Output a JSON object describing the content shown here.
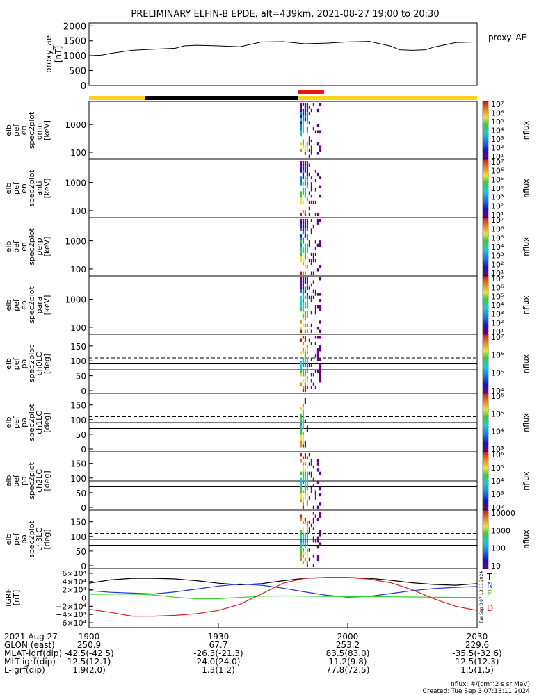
{
  "title": "PRELIMINARY ELFIN-B EPDE, alt=439km, 2021-08-27 19:00 to 20:30",
  "colors": {
    "sunlight_bar": "#ffd21e",
    "shadow_bar": "#000000",
    "science_bar": "#ee1111",
    "T": "#000000",
    "N": "#1f35d8",
    "E": "#2fd12f",
    "D": "#e01b1b"
  },
  "chart_data": [
    {
      "type": "line",
      "title": "proxy_AE",
      "legend": "proxy_AE",
      "ylabel": [
        "proxy_ae",
        "[nT]"
      ],
      "yticks": [
        "2000",
        "1500",
        "1000",
        "500",
        "0"
      ],
      "ylim": [
        0,
        2100
      ],
      "x_minutes": [
        0,
        3,
        5,
        10,
        15,
        20,
        22,
        25,
        30,
        35,
        40,
        45,
        50,
        55,
        60,
        65,
        70,
        72,
        75,
        78,
        80,
        85,
        90
      ],
      "values": [
        1000,
        1020,
        1080,
        1180,
        1220,
        1250,
        1330,
        1350,
        1330,
        1300,
        1460,
        1470,
        1400,
        1420,
        1460,
        1480,
        1320,
        1200,
        1180,
        1200,
        1290,
        1440,
        1460
      ]
    },
    {
      "type": "orbit_bar",
      "segments": [
        {
          "label": "sunlight",
          "from": 0,
          "to": 13
        },
        {
          "label": "shadow",
          "from": 13,
          "to": 48.5
        },
        {
          "label": "sunlight",
          "from": 48.5,
          "to": 90
        }
      ],
      "science_zone": {
        "from": 48.5,
        "to": 54.5
      }
    },
    {
      "type": "heatmap",
      "name": "omni",
      "ylabel": [
        "elb",
        "pef",
        "en",
        "spec2plot",
        "omni",
        "[keV]"
      ],
      "yticks": [
        "1000",
        "100"
      ],
      "yscale": "log",
      "cbar_ticks": [
        "10⁷",
        "10⁶",
        "10⁵",
        "10⁴",
        "10³",
        "10²",
        "10¹"
      ],
      "cbar_label": "nflux",
      "active": [
        49,
        54
      ]
    },
    {
      "type": "heatmap",
      "name": "anti",
      "ylabel": [
        "elb",
        "pef",
        "en",
        "spec2plot",
        "anti",
        "[keV]"
      ],
      "yticks": [
        "1000",
        "100"
      ],
      "yscale": "log",
      "cbar_ticks": [
        "10⁷",
        "10⁶",
        "10⁵",
        "10⁴",
        "10³",
        "10²",
        "10¹"
      ],
      "cbar_label": "nflux",
      "active": [
        49,
        54
      ]
    },
    {
      "type": "heatmap",
      "name": "perp",
      "ylabel": [
        "elb",
        "pef",
        "en",
        "spec2plot",
        "perp",
        "[keV]"
      ],
      "yticks": [
        "1000",
        "100"
      ],
      "yscale": "log",
      "cbar_ticks": [
        "10⁷",
        "10⁶",
        "10⁵",
        "10⁴",
        "10³",
        "10²",
        "10¹"
      ],
      "cbar_label": "nflux",
      "active": [
        49,
        54
      ]
    },
    {
      "type": "heatmap",
      "name": "para",
      "ylabel": [
        "elb",
        "pef",
        "en",
        "spec2plot",
        "para",
        "[keV]"
      ],
      "yticks": [
        "1000",
        "100"
      ],
      "yscale": "log",
      "cbar_ticks": [
        "10⁷",
        "10⁶",
        "10⁵",
        "10⁴",
        "10³",
        "10²",
        "10¹"
      ],
      "cbar_label": "nflux",
      "active": [
        49,
        54
      ]
    },
    {
      "type": "heatmap",
      "name": "ch0LC",
      "ylabel": [
        "elb",
        "pef",
        "pa",
        "spec2plot",
        "ch0LC",
        "[deg]"
      ],
      "yticks": [
        "150",
        "100",
        "50",
        "0"
      ],
      "ylim": [
        0,
        180
      ],
      "reference_lines": {
        "solid": [
          70,
          90
        ],
        "dashed": [
          110
        ]
      },
      "cbar_ticks": [
        "10⁷",
        "10⁶",
        "10⁵",
        "10⁴"
      ],
      "cbar_label": "nflux",
      "active": [
        49,
        54
      ]
    },
    {
      "type": "heatmap",
      "name": "ch1LC",
      "ylabel": [
        "elb",
        "pef",
        "pa",
        "spec2plot",
        "ch1LC",
        "[deg]"
      ],
      "yticks": [
        "150",
        "100",
        "50",
        "0"
      ],
      "ylim": [
        0,
        180
      ],
      "reference_lines": {
        "solid": [
          70,
          90
        ],
        "dashed": [
          110
        ]
      },
      "cbar_ticks": [
        "10⁶",
        "10⁵",
        "10⁴",
        "10³"
      ],
      "cbar_label": "nflux",
      "active": [
        49,
        51
      ]
    },
    {
      "type": "heatmap",
      "name": "ch2LC",
      "ylabel": [
        "elb",
        "pef",
        "pa",
        "spec2plot",
        "ch2LC",
        "[deg]"
      ],
      "yticks": [
        "150",
        "100",
        "50",
        "0"
      ],
      "ylim": [
        0,
        180
      ],
      "reference_lines": {
        "solid": [
          70,
          90
        ],
        "dashed": [
          110
        ]
      },
      "cbar_ticks": [
        "10⁶",
        "10⁵",
        "10⁴",
        "10³",
        "10²"
      ],
      "cbar_label": "nflux",
      "active": [
        49,
        54
      ]
    },
    {
      "type": "heatmap",
      "name": "ch3LC",
      "ylabel": [
        "elb",
        "pef",
        "pa",
        "spec2plot",
        "ch3LC",
        "[deg]"
      ],
      "yticks": [
        "150",
        "100",
        "50",
        "0"
      ],
      "ylim": [
        0,
        180
      ],
      "reference_lines": {
        "solid": [
          70,
          90
        ],
        "dashed": [
          110
        ]
      },
      "cbar_ticks": [
        "10000",
        "1000",
        "100",
        "10"
      ],
      "cbar_label": "nflux",
      "active": [
        49,
        54
      ]
    },
    {
      "type": "line",
      "name": "IGRF",
      "ylabel": [
        "IGRF",
        "[nT]"
      ],
      "yticks": [
        "6×10⁴",
        "4×10⁴",
        "2×10⁴",
        "0",
        "−2×10⁴",
        "−4×10⁴",
        "−6×10⁴"
      ],
      "ylim": [
        -65000,
        65000
      ],
      "x": [
        0,
        5,
        10,
        15,
        20,
        25,
        30,
        35,
        40,
        45,
        50,
        55,
        60,
        65,
        70,
        75,
        80,
        85,
        90
      ],
      "series": [
        {
          "name": "T",
          "values": [
            36000,
            44000,
            48000,
            48000,
            46500,
            42000,
            36000,
            32000,
            35000,
            42000,
            48000,
            50000,
            50000,
            48000,
            43000,
            37000,
            33000,
            31000,
            35000
          ]
        },
        {
          "name": "N",
          "values": [
            18000,
            14000,
            12000,
            10000,
            15000,
            22000,
            29000,
            34000,
            31000,
            24000,
            15000,
            7000,
            2000,
            4000,
            11000,
            18000,
            23000,
            26000,
            28000
          ]
        },
        {
          "name": "E",
          "values": [
            9000,
            9500,
            10000,
            7500,
            2000,
            -2000,
            -1500,
            1500,
            4500,
            5000,
            4500,
            4000,
            3500,
            3500,
            3000,
            2500,
            2000,
            1500,
            1500
          ]
        },
        {
          "name": "D",
          "values": [
            -27000,
            -35000,
            -44000,
            -44000,
            -42000,
            -38000,
            -30000,
            -15000,
            10000,
            36000,
            48000,
            50000,
            50000,
            46000,
            37000,
            20000,
            -2000,
            -20000,
            -30000
          ]
        }
      ]
    }
  ],
  "xaxis": {
    "columns": [
      {
        "x": 0,
        "rows": [
          "1900",
          "250.9",
          "-42.5(-42.5)",
          "12.5(12.1)",
          "1.9(2.0)"
        ]
      },
      {
        "x": 30,
        "rows": [
          "1930",
          "67.7",
          "-26.3(-21.3)",
          "24.0(24.0)",
          "1.3(1.2)"
        ]
      },
      {
        "x": 60,
        "rows": [
          "2000",
          "253.2",
          "83.5(83.0)",
          "11.2(9.8)",
          "77.8(72.5)"
        ]
      },
      {
        "x": 90,
        "rows": [
          "2030",
          "229.6",
          "-35.5(-32.6)",
          "12.5(12.3)",
          "1.5(1.5)"
        ]
      }
    ],
    "row_labels": [
      "2021 Aug 27",
      "GLON (east)",
      "MLAT-igrf(dip)",
      "MLT-igrf(dip)",
      "L-igrf(dip)"
    ]
  },
  "footer": {
    "units": "nflux: #/(cm^2 s sr MeV)",
    "created": "Created: Tue Sep  3 07:13:11 2024",
    "side_stamp": "Tue Sep  3 07:13:11 2024"
  }
}
